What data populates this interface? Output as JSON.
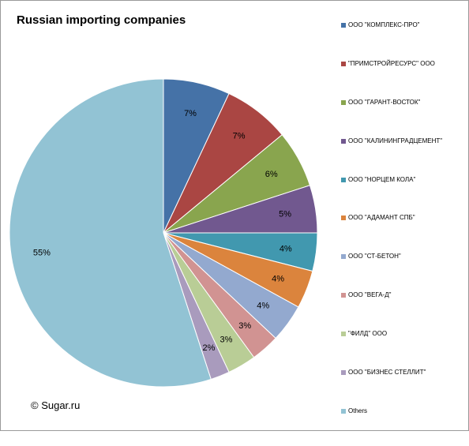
{
  "chart_data": {
    "type": "pie",
    "title": "Russian importing companies",
    "credit": "© Sugar.ru",
    "legend_position": "right",
    "slices": [
      {
        "name": "ООО \"КОМПЛЕКС-ПРО\"",
        "value": 7,
        "label": "7%",
        "color": "#4572A7"
      },
      {
        "name": "\"ПРИМСТРОЙРЕСУРС\" ООО",
        "value": 7,
        "label": "7%",
        "color": "#AA4643"
      },
      {
        "name": "ООО \"ГАРАНТ-ВОСТОК\"",
        "value": 6,
        "label": "6%",
        "color": "#89A54E"
      },
      {
        "name": "ООО \"КАЛИНИНГРАДЦЕМЕНТ\"",
        "value": 5,
        "label": "5%",
        "color": "#71588F"
      },
      {
        "name": "ООО \"НОРЦЕМ КОЛА\"",
        "value": 4,
        "label": "4%",
        "color": "#4198AF"
      },
      {
        "name": "ООО \"АДАМАНТ СПБ\"",
        "value": 4,
        "label": "4%",
        "color": "#DB843D"
      },
      {
        "name": "ООО \"СТ-БЕТОН\"",
        "value": 4,
        "label": "4%",
        "color": "#93A9CF"
      },
      {
        "name": "ООО \"ВЕГА-Д\"",
        "value": 3,
        "label": "3%",
        "color": "#D19392"
      },
      {
        "name": "\"ФИЛД\" ООО",
        "value": 3,
        "label": "3%",
        "color": "#B9CD96"
      },
      {
        "name": "ООО \"БИЗНЕС СТЕЛЛИТ\"",
        "value": 2,
        "label": "2%",
        "color": "#A99BBD"
      },
      {
        "name": "Others",
        "value": 55,
        "label": "55%",
        "color": "#92C3D4"
      }
    ]
  }
}
